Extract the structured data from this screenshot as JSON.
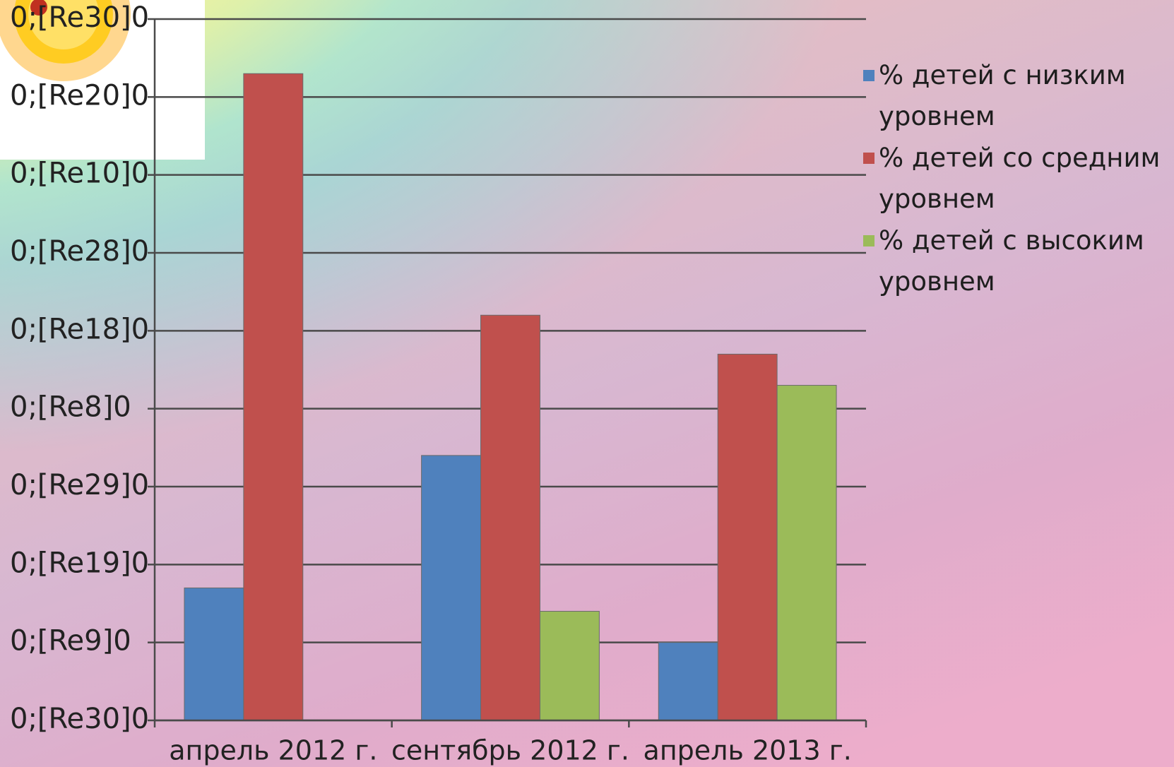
{
  "chart_data": {
    "type": "bar",
    "categories": [
      "апрель 2012 г.",
      "сентябрь 2012 г.",
      "апрель 2013 г."
    ],
    "series": [
      {
        "name": "% детей с низким уровнем",
        "color": "#4f81bd",
        "values": [
          17,
          34,
          10
        ]
      },
      {
        "name": "% детей со средним уровнем",
        "color": "#c0504d",
        "values": [
          83,
          52,
          47
        ]
      },
      {
        "name": "% детей с высоким уровнем",
        "color": "#9bbb59",
        "values": [
          0,
          14,
          43
        ]
      }
    ],
    "ylim": [
      0,
      90
    ],
    "yticks": [
      {
        "value": 0,
        "label": "0;[Re30]0"
      },
      {
        "value": 10,
        "label": "0;[Re9]0"
      },
      {
        "value": 20,
        "label": "0;[Re19]0"
      },
      {
        "value": 30,
        "label": "0;[Re29]0"
      },
      {
        "value": 40,
        "label": "0;[Re8]0"
      },
      {
        "value": 50,
        "label": "0;[Re18]0"
      },
      {
        "value": 60,
        "label": "0;[Re28]0"
      },
      {
        "value": 70,
        "label": "0;[Re10]0"
      },
      {
        "value": 80,
        "label": "0;[Re20]0"
      },
      {
        "value": 90,
        "label": "0;[Re30]0"
      }
    ],
    "grid": true,
    "legend": "right"
  }
}
